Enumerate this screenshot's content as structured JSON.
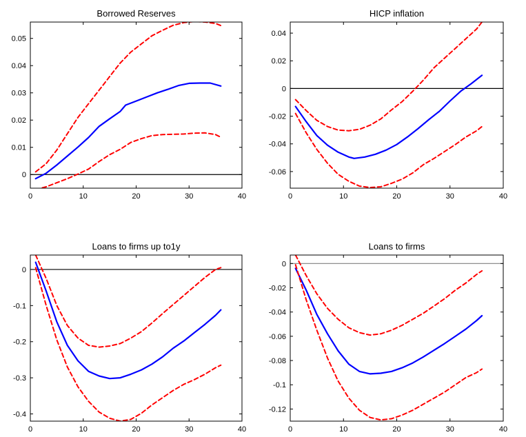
{
  "colors": {
    "central": "#0000ff",
    "band": "#ff0000",
    "zero_line": "#000000",
    "zero_line_alt": "#808080",
    "background": "#ffffff"
  },
  "chart_data": [
    {
      "type": "line",
      "title": "Borrowed Reserves",
      "xlabel": "",
      "ylabel": "",
      "xlim": [
        0,
        40
      ],
      "ylim": [
        -0.005,
        0.056
      ],
      "xticks": [
        0,
        10,
        20,
        30,
        40
      ],
      "yticks": [
        0,
        0.01,
        0.02,
        0.03,
        0.04,
        0.05
      ],
      "ytick_labels": [
        "0",
        "0.01",
        "0.02",
        "0.03",
        "0.04",
        "0.05"
      ],
      "xtick_labels": [
        "0",
        "10",
        "20",
        "30",
        "40"
      ],
      "zero_line": true,
      "grid": false,
      "series": [
        {
          "role": "central",
          "style": "solid",
          "x": [
            1,
            3,
            5,
            7,
            9,
            11,
            13,
            15,
            17,
            18,
            20,
            22,
            24,
            26,
            28,
            30,
            32,
            34,
            36
          ],
          "y": [
            -0.0015,
            0.0005,
            0.0035,
            0.0068,
            0.0101,
            0.0136,
            0.0177,
            0.0205,
            0.0232,
            0.0255,
            0.027,
            0.0285,
            0.03,
            0.0313,
            0.0327,
            0.0335,
            0.0336,
            0.0336,
            0.0325
          ]
        },
        {
          "role": "upper",
          "style": "dashed",
          "x": [
            1,
            3,
            5,
            7,
            9,
            11,
            13,
            15,
            17,
            19,
            21,
            23,
            25,
            27,
            29,
            31,
            33,
            35,
            36
          ],
          "y": [
            0.001,
            0.004,
            0.009,
            0.015,
            0.021,
            0.026,
            0.031,
            0.036,
            0.041,
            0.045,
            0.048,
            0.051,
            0.053,
            0.0548,
            0.0558,
            0.0562,
            0.056,
            0.0555,
            0.0547
          ]
        },
        {
          "role": "lower",
          "style": "dashed",
          "x": [
            1,
            3,
            5,
            7,
            9,
            11,
            13,
            15,
            17,
            19,
            21,
            23,
            25,
            27,
            29,
            31,
            33,
            35,
            36
          ],
          "y": [
            -0.0055,
            -0.0045,
            -0.003,
            -0.0015,
            0.0002,
            0.002,
            0.0048,
            0.0073,
            0.0093,
            0.0118,
            0.0132,
            0.0143,
            0.0147,
            0.0148,
            0.0149,
            0.0152,
            0.0153,
            0.0147,
            0.0137
          ]
        }
      ]
    },
    {
      "type": "line",
      "title": "HICP inflation",
      "xlabel": "",
      "ylabel": "",
      "xlim": [
        0,
        40
      ],
      "ylim": [
        -0.072,
        0.048
      ],
      "xticks": [
        0,
        10,
        20,
        30,
        40
      ],
      "yticks": [
        -0.06,
        -0.04,
        -0.02,
        0,
        0.02,
        0.04
      ],
      "ytick_labels": [
        "-0.06",
        "-0.04",
        "-0.02",
        "0",
        "0.02",
        "0.04"
      ],
      "xtick_labels": [
        "0",
        "10",
        "20",
        "30",
        "40"
      ],
      "zero_line": true,
      "grid": false,
      "series": [
        {
          "role": "central",
          "style": "solid",
          "x": [
            1,
            3,
            5,
            7,
            9,
            11,
            12,
            14,
            16,
            18,
            20,
            22,
            24,
            26,
            28,
            30,
            32,
            34,
            36
          ],
          "y": [
            -0.013,
            -0.024,
            -0.034,
            -0.041,
            -0.046,
            -0.0495,
            -0.0505,
            -0.0495,
            -0.0475,
            -0.0445,
            -0.0405,
            -0.035,
            -0.029,
            -0.0225,
            -0.0165,
            -0.009,
            -0.002,
            0.0035,
            0.0095
          ]
        },
        {
          "role": "upper",
          "style": "dashed",
          "x": [
            1,
            3,
            5,
            7,
            9,
            11,
            13,
            15,
            17,
            19,
            21,
            23,
            25,
            27,
            29,
            31,
            33,
            35,
            36
          ],
          "y": [
            -0.008,
            -0.016,
            -0.023,
            -0.0275,
            -0.03,
            -0.0305,
            -0.0295,
            -0.0265,
            -0.022,
            -0.0155,
            -0.0095,
            -0.002,
            0.006,
            0.015,
            0.022,
            0.029,
            0.036,
            0.043,
            0.048
          ]
        },
        {
          "role": "lower",
          "style": "dashed",
          "x": [
            1,
            3,
            5,
            7,
            9,
            11,
            13,
            15,
            17,
            19,
            21,
            23,
            25,
            27,
            29,
            31,
            33,
            35,
            36
          ],
          "y": [
            -0.018,
            -0.032,
            -0.044,
            -0.054,
            -0.062,
            -0.067,
            -0.0705,
            -0.0715,
            -0.071,
            -0.0685,
            -0.0655,
            -0.061,
            -0.055,
            -0.0505,
            -0.0455,
            -0.0405,
            -0.035,
            -0.0305,
            -0.0275
          ]
        }
      ]
    },
    {
      "type": "line",
      "title": "Loans to firms up to1y",
      "xlabel": "",
      "ylabel": "",
      "xlim": [
        0,
        40
      ],
      "ylim": [
        -0.42,
        0.04
      ],
      "xticks": [
        0,
        10,
        20,
        30,
        40
      ],
      "yticks": [
        -0.4,
        -0.3,
        -0.2,
        -0.1,
        0
      ],
      "ytick_labels": [
        "-0.4",
        "-0.3",
        "-0.2",
        "-0.1",
        "0"
      ],
      "xtick_labels": [
        "0",
        "10",
        "20",
        "30",
        "40"
      ],
      "zero_line": true,
      "grid": false,
      "series": [
        {
          "role": "central",
          "style": "solid",
          "x": [
            1,
            3,
            5,
            7,
            9,
            11,
            13,
            15,
            17,
            19,
            21,
            23,
            25,
            27,
            29,
            31,
            33,
            35,
            36
          ],
          "y": [
            0.02,
            -0.06,
            -0.145,
            -0.21,
            -0.253,
            -0.282,
            -0.295,
            -0.302,
            -0.3,
            -0.29,
            -0.278,
            -0.262,
            -0.242,
            -0.218,
            -0.198,
            -0.175,
            -0.152,
            -0.127,
            -0.112
          ]
        },
        {
          "role": "upper",
          "style": "dashed",
          "x": [
            1,
            3,
            5,
            7,
            9,
            11,
            13,
            15,
            17,
            19,
            21,
            23,
            25,
            27,
            29,
            31,
            33,
            35,
            36
          ],
          "y": [
            0.04,
            -0.025,
            -0.1,
            -0.155,
            -0.19,
            -0.21,
            -0.215,
            -0.212,
            -0.205,
            -0.19,
            -0.172,
            -0.148,
            -0.122,
            -0.097,
            -0.072,
            -0.047,
            -0.022,
            0.0,
            0.005
          ]
        },
        {
          "role": "lower",
          "style": "dashed",
          "x": [
            1,
            3,
            5,
            7,
            9,
            11,
            13,
            15,
            17,
            19,
            21,
            23,
            25,
            27,
            29,
            31,
            33,
            35,
            36
          ],
          "y": [
            0.005,
            -0.1,
            -0.195,
            -0.27,
            -0.325,
            -0.365,
            -0.395,
            -0.412,
            -0.42,
            -0.415,
            -0.398,
            -0.375,
            -0.355,
            -0.335,
            -0.318,
            -0.305,
            -0.29,
            -0.272,
            -0.265
          ]
        }
      ]
    },
    {
      "type": "line",
      "title": "Loans to firms",
      "xlabel": "",
      "ylabel": "",
      "xlim": [
        0,
        40
      ],
      "ylim": [
        -0.13,
        0.007
      ],
      "xticks": [
        0,
        10,
        20,
        30,
        40
      ],
      "yticks": [
        -0.12,
        -0.1,
        -0.08,
        -0.06,
        -0.04,
        -0.02,
        0
      ],
      "ytick_labels": [
        "-0.12",
        "-0.1",
        "-0.08",
        "-0.06",
        "-0.04",
        "-0.02",
        "0"
      ],
      "xtick_labels": [
        "0",
        "10",
        "20",
        "30",
        "40"
      ],
      "zero_line": true,
      "zero_line_color": "gray",
      "grid": false,
      "series": [
        {
          "role": "central",
          "style": "solid",
          "x": [
            1,
            3,
            5,
            7,
            9,
            11,
            13,
            15,
            17,
            19,
            21,
            23,
            25,
            27,
            29,
            31,
            33,
            35,
            36
          ],
          "y": [
            -0.004,
            -0.022,
            -0.042,
            -0.058,
            -0.072,
            -0.083,
            -0.089,
            -0.091,
            -0.0905,
            -0.089,
            -0.086,
            -0.082,
            -0.077,
            -0.0715,
            -0.066,
            -0.06,
            -0.054,
            -0.047,
            -0.043
          ]
        },
        {
          "role": "upper",
          "style": "dashed",
          "x": [
            1,
            3,
            5,
            7,
            9,
            11,
            13,
            15,
            17,
            19,
            21,
            23,
            25,
            27,
            29,
            31,
            33,
            35,
            36
          ],
          "y": [
            0.007,
            -0.01,
            -0.025,
            -0.037,
            -0.046,
            -0.053,
            -0.057,
            -0.059,
            -0.058,
            -0.055,
            -0.051,
            -0.046,
            -0.041,
            -0.035,
            -0.029,
            -0.022,
            -0.016,
            -0.009,
            -0.006
          ]
        },
        {
          "role": "lower",
          "style": "dashed",
          "x": [
            1,
            3,
            5,
            7,
            9,
            11,
            13,
            15,
            17,
            19,
            21,
            23,
            25,
            27,
            29,
            31,
            33,
            35,
            36
          ],
          "y": [
            -0.001,
            -0.03,
            -0.055,
            -0.078,
            -0.097,
            -0.111,
            -0.121,
            -0.127,
            -0.129,
            -0.128,
            -0.125,
            -0.121,
            -0.116,
            -0.111,
            -0.106,
            -0.1,
            -0.094,
            -0.09,
            -0.087
          ]
        }
      ]
    }
  ]
}
